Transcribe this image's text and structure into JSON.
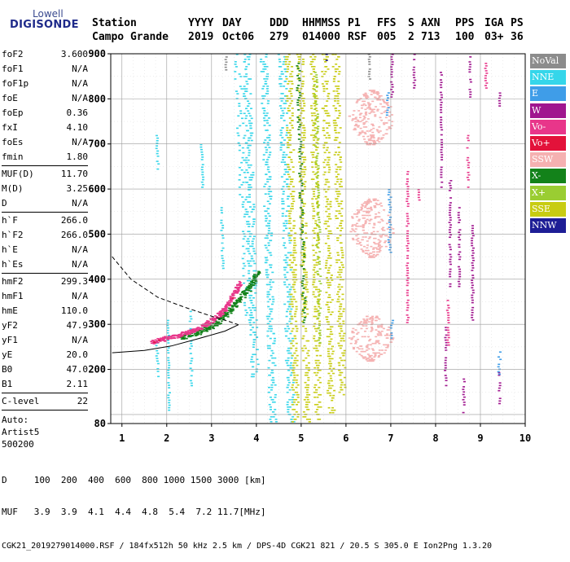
{
  "logo": {
    "line1": "Lowell",
    "line2": "DIGISONDE"
  },
  "header": {
    "labels": [
      "Station",
      "YYYY",
      "DAY",
      "DDD",
      "HHMMSS",
      "P1",
      "FFS",
      "S",
      "AXN",
      "PPS",
      "IGA",
      "PS"
    ],
    "values": [
      "Campo Grande",
      "2019",
      "Oct06",
      "279",
      "014000",
      "RSF",
      "005",
      "2",
      "713",
      "100",
      "03+",
      "36"
    ]
  },
  "params": {
    "group1": [
      {
        "name": "foF2",
        "value": "3.600"
      },
      {
        "name": "foF1",
        "value": "N/A"
      },
      {
        "name": "foF1p",
        "value": "N/A"
      },
      {
        "name": "foE",
        "value": "N/A"
      },
      {
        "name": "foEp",
        "value": "0.36"
      },
      {
        "name": "fxI",
        "value": "4.10"
      },
      {
        "name": "foEs",
        "value": "N/A"
      },
      {
        "name": "fmin",
        "value": "1.80"
      }
    ],
    "group2": [
      {
        "name": "MUF(D)",
        "value": "11.70"
      },
      {
        "name": "M(D)",
        "value": "3.25"
      },
      {
        "name": "D",
        "value": "N/A"
      }
    ],
    "group3": [
      {
        "name": "h`F",
        "value": "266.0"
      },
      {
        "name": "h`F2",
        "value": "266.0"
      },
      {
        "name": "h`E",
        "value": "N/A"
      },
      {
        "name": "h`Es",
        "value": "N/A"
      }
    ],
    "group4": [
      {
        "name": "hmF2",
        "value": "299.3"
      },
      {
        "name": "hmF1",
        "value": "N/A"
      },
      {
        "name": "hmE",
        "value": "110.0"
      },
      {
        "name": "yF2",
        "value": "47.9"
      },
      {
        "name": "yF1",
        "value": "N/A"
      },
      {
        "name": "yE",
        "value": "20.0"
      },
      {
        "name": "B0",
        "value": "47.0"
      },
      {
        "name": "B1",
        "value": "2.11"
      }
    ],
    "group5": [
      {
        "name": "C-level",
        "value": "22"
      }
    ],
    "auto": [
      "Auto:",
      "Artist5",
      "500200"
    ]
  },
  "legend": [
    {
      "label": "NoVal",
      "color": "#8c8c8c",
      "text_color": "#ffffff"
    },
    {
      "label": "NNE",
      "color": "#35d6ea",
      "text_color": "#ffffff"
    },
    {
      "label": "E",
      "color": "#3f9de8",
      "text_color": "#ffffff"
    },
    {
      "label": "W",
      "color": "#a0168f",
      "text_color": "#ffffff"
    },
    {
      "label": "Vo-",
      "color": "#e8368a",
      "text_color": "#ffffff"
    },
    {
      "label": "Vo+",
      "color": "#e3123a",
      "text_color": "#ffffff"
    },
    {
      "label": "SSW",
      "color": "#f5b1b1",
      "text_color": "#ffffff"
    },
    {
      "label": "X-",
      "color": "#13821a",
      "text_color": "#ffffff"
    },
    {
      "label": "X+",
      "color": "#9acd32",
      "text_color": "#ffffff"
    },
    {
      "label": "SSE",
      "color": "#c8cc12",
      "text_color": "#ffffff"
    },
    {
      "label": "NNW",
      "color": "#1e1e96",
      "text_color": "#ffffff"
    }
  ],
  "chart_data": {
    "type": "scatter",
    "title": "",
    "xlabel": "",
    "ylabel": "",
    "xlim": [
      0.75,
      10.0
    ],
    "ylim": [
      80,
      900
    ],
    "xticks": [
      1,
      2,
      3,
      4,
      5,
      6,
      7,
      8,
      9,
      10
    ],
    "yticks": [
      200,
      300,
      400,
      500,
      600,
      700,
      800,
      900
    ],
    "ytick_labels_extra": [
      80
    ],
    "grid": true,
    "legend_position": "right",
    "traces": {
      "magenta_O_trace": [
        [
          1.65,
          262
        ],
        [
          1.9,
          268
        ],
        [
          2.2,
          276
        ],
        [
          2.5,
          285
        ],
        [
          2.8,
          298
        ],
        [
          3.0,
          310
        ],
        [
          3.2,
          326
        ],
        [
          3.35,
          345
        ],
        [
          3.5,
          372
        ],
        [
          3.6,
          392
        ]
      ],
      "green_X_trace": [
        [
          2.3,
          272
        ],
        [
          2.6,
          280
        ],
        [
          2.9,
          292
        ],
        [
          3.1,
          305
        ],
        [
          3.3,
          322
        ],
        [
          3.5,
          345
        ],
        [
          3.7,
          368
        ],
        [
          3.9,
          392
        ],
        [
          4.0,
          415
        ]
      ],
      "cyan_multihop_bands": [
        [
          3.75,
          900,
          3.95,
          180
        ],
        [
          4.15,
          900,
          4.35,
          80
        ],
        [
          4.55,
          900,
          4.75,
          80
        ]
      ],
      "yellow_multihop_bands": [
        [
          4.7,
          900,
          4.85,
          80
        ],
        [
          4.95,
          900,
          5.1,
          80
        ],
        [
          5.25,
          900,
          5.35,
          80
        ],
        [
          5.5,
          900,
          5.65,
          100
        ],
        [
          5.75,
          900,
          5.9,
          140
        ]
      ],
      "pink_SSW_clusters": [
        [
          6.55,
          700,
          820
        ],
        [
          6.55,
          450,
          580
        ],
        [
          6.55,
          220,
          320
        ]
      ]
    },
    "profile": {
      "solid": [
        [
          0.78,
          237
        ],
        [
          1.5,
          242
        ],
        [
          2.1,
          252
        ],
        [
          2.7,
          268
        ],
        [
          3.3,
          285
        ],
        [
          3.6,
          299
        ]
      ],
      "dashed": [
        [
          0.78,
          450
        ],
        [
          1.2,
          400
        ],
        [
          1.8,
          360
        ],
        [
          2.4,
          338
        ],
        [
          3.0,
          318
        ],
        [
          3.4,
          306
        ],
        [
          3.6,
          299
        ]
      ]
    }
  },
  "footer": {
    "row1_label": "D",
    "row1_values": [
      "100",
      "200",
      "400",
      "600",
      "800",
      "1000",
      "1500",
      "3000",
      "[km]"
    ],
    "row2_label": "MUF",
    "row2_values": [
      "3.9",
      "3.9",
      "4.1",
      "4.4",
      "4.8",
      "5.4",
      "7.2",
      "11.7",
      "[MHz]"
    ],
    "row3": "CGK21_2019279014000.RSF / 184fx512h 50 kHz 2.5 km / DPS-4D CGK21 821 / 20.5 S 305.0 E Ion2Png 1.3.20"
  }
}
